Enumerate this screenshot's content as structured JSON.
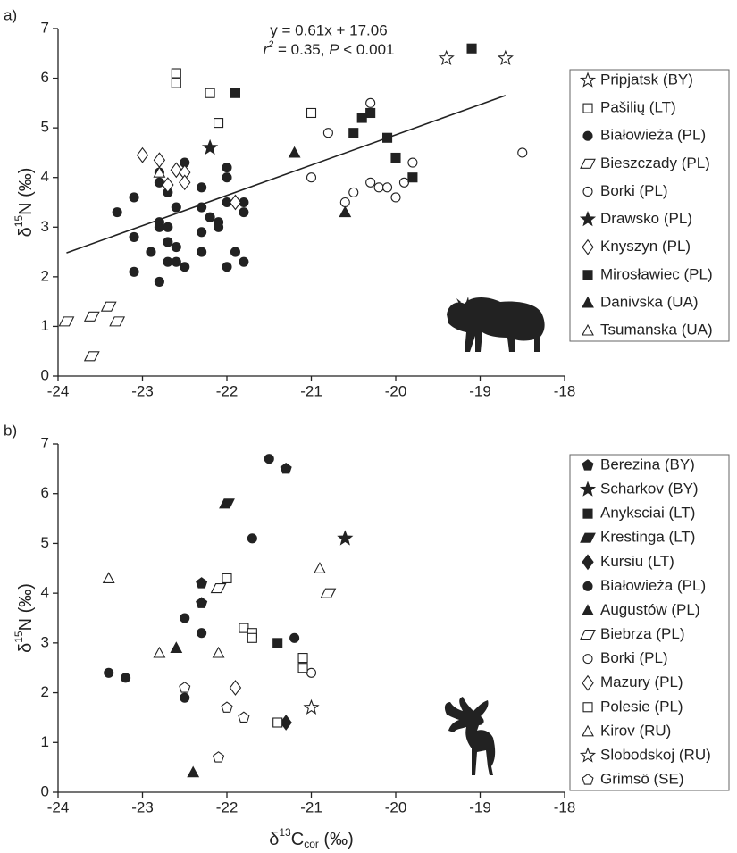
{
  "chart_data": [
    {
      "type": "scatter",
      "panel_label": "a)",
      "ylabel_parts": [
        "δ",
        "15",
        "N (‰)"
      ],
      "annotation": {
        "line1": "y = 0.61x + 17.06",
        "line2_parts": [
          "r",
          "2",
          " = 0.35, ",
          "P",
          " < 0.001"
        ]
      },
      "regression": {
        "slope": 0.61,
        "intercept": 17.06,
        "x_range": [
          -23.9,
          -18.7
        ]
      },
      "xlim": [
        -24,
        -18
      ],
      "ylim": [
        0,
        7
      ],
      "xticks": [
        -24,
        -23,
        -22,
        -21,
        -20,
        -19,
        -18
      ],
      "yticks": [
        0,
        1,
        2,
        3,
        4,
        5,
        6,
        7
      ],
      "legend": "right",
      "marker_color": "#222222",
      "series": [
        {
          "name": "Pripjatsk (BY)",
          "marker": "star",
          "filled": false,
          "x": [
            -19.4,
            -18.7
          ],
          "y": [
            6.4,
            6.4
          ]
        },
        {
          "name": "Pašilių (LT)",
          "marker": "square",
          "filled": false,
          "x": [
            -22.6,
            -22.6,
            -22.2,
            -22.1,
            -21.0
          ],
          "y": [
            6.1,
            5.9,
            5.7,
            5.1,
            5.3
          ]
        },
        {
          "name": "Białowieża (PL)",
          "marker": "circle",
          "filled": true,
          "x": [
            -22.5,
            -22.5,
            -22.8,
            -22.8,
            -22.7,
            -23.1,
            -23.3,
            -22.6,
            -22.3,
            -22.3,
            -22.2,
            -22.1,
            -22.1,
            -22.3,
            -22.0,
            -22.0,
            -22.0,
            -21.8,
            -21.8,
            -22.8,
            -22.8,
            -22.7,
            -22.6,
            -22.7,
            -22.9,
            -22.7,
            -22.6,
            -22.5,
            -22.3,
            -23.1,
            -23.1,
            -22.8,
            -22.0,
            -21.8,
            -21.9
          ],
          "y": [
            4.3,
            4.1,
            4.1,
            3.9,
            3.7,
            3.6,
            3.3,
            3.4,
            3.4,
            3.8,
            3.2,
            3.1,
            3.0,
            2.9,
            4.2,
            4.0,
            3.5,
            3.5,
            3.3,
            3.1,
            3.0,
            3.0,
            2.6,
            2.7,
            2.5,
            2.3,
            2.3,
            2.2,
            2.5,
            2.8,
            2.1,
            1.9,
            2.2,
            2.3,
            2.5
          ]
        },
        {
          "name": "Bieszczady (PL)",
          "marker": "parallelogram",
          "filled": false,
          "x": [
            -23.9,
            -23.6,
            -23.4,
            -23.3,
            -23.6
          ],
          "y": [
            1.1,
            1.2,
            1.4,
            1.1,
            0.4
          ]
        },
        {
          "name": "Borki (PL)",
          "marker": "circle",
          "filled": false,
          "x": [
            -20.3,
            -20.8,
            -21.0,
            -20.6,
            -20.5,
            -20.3,
            -20.2,
            -20.1,
            -20.0,
            -19.9,
            -19.8,
            -18.5
          ],
          "y": [
            5.5,
            4.9,
            4.0,
            3.5,
            3.7,
            3.9,
            3.8,
            3.8,
            3.6,
            3.9,
            4.3,
            4.5
          ]
        },
        {
          "name": "Drawsko (PL)",
          "marker": "star",
          "filled": true,
          "x": [
            -22.2
          ],
          "y": [
            4.6
          ]
        },
        {
          "name": "Knyszyn (PL)",
          "marker": "diamond",
          "filled": false,
          "x": [
            -23.0,
            -22.8,
            -22.6,
            -22.5,
            -22.5,
            -22.7,
            -21.9
          ],
          "y": [
            4.45,
            4.35,
            4.15,
            4.1,
            3.9,
            3.85,
            3.5
          ]
        },
        {
          "name": "Mirosławiec (PL)",
          "marker": "square",
          "filled": true,
          "x": [
            -21.9,
            -20.4,
            -20.3,
            -20.5,
            -20.1,
            -20.0,
            -19.8,
            -19.1
          ],
          "y": [
            5.7,
            5.2,
            5.3,
            4.9,
            4.8,
            4.4,
            4.0,
            6.6
          ]
        },
        {
          "name": "Danivska (UA)",
          "marker": "triangle",
          "filled": true,
          "x": [
            -21.2,
            -20.6
          ],
          "y": [
            4.5,
            3.3
          ]
        },
        {
          "name": "Tsumanska (UA)",
          "marker": "triangle",
          "filled": false,
          "x": [
            -22.8
          ],
          "y": [
            4.1
          ]
        }
      ]
    },
    {
      "type": "scatter",
      "panel_label": "b)",
      "ylabel_parts": [
        "δ",
        "15",
        "N (‰)"
      ],
      "xlabel_parts": [
        "δ",
        "13",
        "C",
        "cor",
        " (‰)"
      ],
      "xlim": [
        -24,
        -18
      ],
      "ylim": [
        0,
        7
      ],
      "xticks": [
        -24,
        -23,
        -22,
        -21,
        -20,
        -19,
        -18
      ],
      "yticks": [
        0,
        1,
        2,
        3,
        4,
        5,
        6,
        7
      ],
      "legend": "right",
      "marker_color": "#222222",
      "series": [
        {
          "name": "Berezina (BY)",
          "marker": "pentagon",
          "filled": true,
          "x": [
            -22.3,
            -22.3,
            -21.3
          ],
          "y": [
            4.2,
            3.8,
            6.5
          ]
        },
        {
          "name": "Scharkov (BY)",
          "marker": "star",
          "filled": true,
          "x": [
            -20.6
          ],
          "y": [
            5.1
          ]
        },
        {
          "name": "Anyksciai (LT)",
          "marker": "square",
          "filled": true,
          "x": [
            -21.4
          ],
          "y": [
            3.0
          ]
        },
        {
          "name": "Krestinga (LT)",
          "marker": "parallelogram",
          "filled": true,
          "x": [
            -22.0
          ],
          "y": [
            5.8
          ]
        },
        {
          "name": "Kursiu (LT)",
          "marker": "diamond",
          "filled": true,
          "x": [
            -21.3
          ],
          "y": [
            1.4
          ]
        },
        {
          "name": "Białowieża (PL)",
          "marker": "circle",
          "filled": true,
          "x": [
            -21.5,
            -21.7,
            -22.5,
            -22.3,
            -21.2,
            -23.4,
            -23.2,
            -22.5
          ],
          "y": [
            6.7,
            5.1,
            3.5,
            3.2,
            3.1,
            2.4,
            2.3,
            1.9
          ]
        },
        {
          "name": "Augustów (PL)",
          "marker": "triangle",
          "filled": true,
          "x": [
            -22.6,
            -22.4
          ],
          "y": [
            2.9,
            0.4
          ]
        },
        {
          "name": "Biebrza (PL)",
          "marker": "parallelogram",
          "filled": false,
          "x": [
            -22.1,
            -20.8
          ],
          "y": [
            4.1,
            4.0
          ]
        },
        {
          "name": "Borki (PL)",
          "marker": "circle",
          "filled": false,
          "x": [
            -21.0
          ],
          "y": [
            2.4
          ]
        },
        {
          "name": "Mazury (PL)",
          "marker": "diamond",
          "filled": false,
          "x": [
            -21.9
          ],
          "y": [
            2.1
          ]
        },
        {
          "name": "Polesie (PL)",
          "marker": "square",
          "filled": false,
          "x": [
            -22.0,
            -21.8,
            -21.7,
            -21.7,
            -21.1,
            -21.1,
            -21.4
          ],
          "y": [
            4.3,
            3.3,
            3.2,
            3.1,
            2.7,
            2.5,
            1.4
          ]
        },
        {
          "name": "Kirov (RU)",
          "marker": "triangle",
          "filled": false,
          "x": [
            -23.4,
            -20.9,
            -22.8,
            -22.1
          ],
          "y": [
            4.3,
            4.5,
            2.8,
            2.8
          ]
        },
        {
          "name": "Slobodskoj (RU)",
          "marker": "star",
          "filled": false,
          "x": [
            -21.0
          ],
          "y": [
            1.7
          ]
        },
        {
          "name": "Grimsö (SE)",
          "marker": "pentagon",
          "filled": false,
          "x": [
            -22.5,
            -22.0,
            -21.8,
            -22.1
          ],
          "y": [
            2.1,
            1.7,
            1.5,
            0.7
          ]
        }
      ]
    }
  ]
}
